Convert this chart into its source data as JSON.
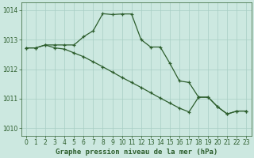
{
  "line1_x": [
    0,
    1,
    2,
    3,
    4,
    5,
    6,
    7,
    8,
    9,
    10,
    11,
    12,
    13,
    14,
    15,
    16,
    17,
    18,
    19,
    20,
    21,
    22,
    23
  ],
  "line1_y": [
    1012.72,
    1012.72,
    1012.82,
    1012.82,
    1012.82,
    1012.82,
    1013.1,
    1013.3,
    1013.88,
    1013.85,
    1013.87,
    1013.87,
    1013.0,
    1012.75,
    1012.75,
    1012.2,
    1011.6,
    1011.55,
    1011.05,
    1011.05,
    1010.72,
    1010.48,
    1010.58,
    1010.58
  ],
  "line2_x": [
    0,
    1,
    2,
    3,
    4,
    5,
    6,
    7,
    8,
    9,
    10,
    11,
    12,
    13,
    14,
    15,
    16,
    17,
    18,
    19,
    20,
    21,
    22,
    23
  ],
  "line2_y": [
    1012.72,
    1012.72,
    1012.82,
    1012.72,
    1012.68,
    1012.55,
    1012.42,
    1012.25,
    1012.08,
    1011.9,
    1011.72,
    1011.55,
    1011.38,
    1011.2,
    1011.02,
    1010.85,
    1010.68,
    1010.55,
    1011.05,
    1011.05,
    1010.72,
    1010.48,
    1010.58,
    1010.58
  ],
  "line_color": "#2d5e2d",
  "bg_color": "#cce8e0",
  "grid_color": "#a8cec4",
  "xlabel": "Graphe pression niveau de la mer (hPa)",
  "ylim": [
    1009.75,
    1014.25
  ],
  "xlim": [
    -0.5,
    23.5
  ],
  "yticks": [
    1010,
    1011,
    1012,
    1013,
    1014
  ],
  "xticks": [
    0,
    1,
    2,
    3,
    4,
    5,
    6,
    7,
    8,
    9,
    10,
    11,
    12,
    13,
    14,
    15,
    16,
    17,
    18,
    19,
    20,
    21,
    22,
    23
  ],
  "xlabel_fontsize": 6.5,
  "tick_fontsize": 5.5,
  "linewidth": 0.9,
  "markersize": 3.5,
  "markeredgewidth": 0.9
}
